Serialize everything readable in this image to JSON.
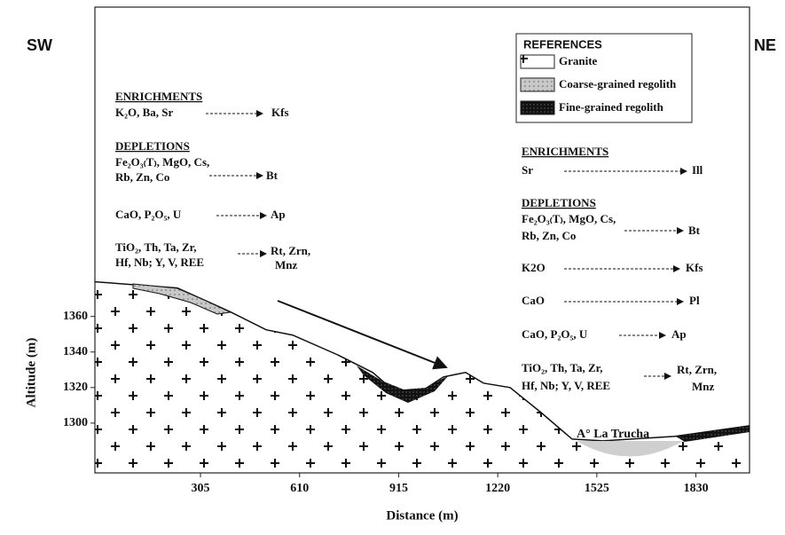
{
  "chart_data": {
    "type": "area",
    "x_label": "Distance (m)",
    "y_label": "Altitude (m)",
    "x": [
      -20,
      234,
      398,
      507,
      589,
      726,
      835,
      930,
      998,
      1053,
      1121,
      1176,
      1258,
      1353,
      1449,
      1544,
      1763,
      1995
    ],
    "values": [
      1379.5,
      1376,
      1362.5,
      1352.5,
      1349.5,
      1338.5,
      1328.5,
      1313.5,
      1319.5,
      1326,
      1328.5,
      1322.5,
      1320,
      1306,
      1291,
      1290,
      1292.5,
      1298.5
    ],
    "xlim": [
      -20,
      1995
    ],
    "ylim": [
      1272,
      1534
    ],
    "xticks": [
      305,
      610,
      915,
      1220,
      1525,
      1830
    ],
    "yticks": [
      1300,
      1320,
      1340,
      1360
    ],
    "color": "#ffffff"
  },
  "labels": {
    "sw": "SW",
    "ne": "NE",
    "place": "A° La Trucha"
  },
  "references": {
    "title": "REFERENCES",
    "items": [
      "Granite",
      "Coarse-grained regolith",
      "Fine-grained regolith"
    ]
  },
  "left_notes": [
    "ENRICHMENTS",
    "K₂O, Ba, Sr",
    "Kfs",
    "DEPLETIONS",
    "Fe₂O₃₍T₎, MgO, Cs,",
    "Rb, Zn, Co",
    "Bt",
    "CaO, P₂O₅, U",
    "Ap",
    "TiO₂, Th, Ta, Zr,",
    "Hf, Nb; Y, V, REE",
    "Rt, Zrn,",
    "Mnz"
  ],
  "right_notes": [
    "ENRICHMENTS",
    "Sr",
    "Ill",
    "DEPLETIONS",
    "Fe₂O₃₍T₎, MgO, Cs,",
    "Rb, Zn, Co",
    "Bt",
    "K2O",
    "Kfs",
    "CaO",
    "Pl",
    "CaO, P₂O₅, U",
    "Ap",
    "TiO₂, Th, Ta, Zr,",
    "Hf, Nb; Y, V, REE",
    "Rt, Zrn,",
    "Mnz"
  ]
}
